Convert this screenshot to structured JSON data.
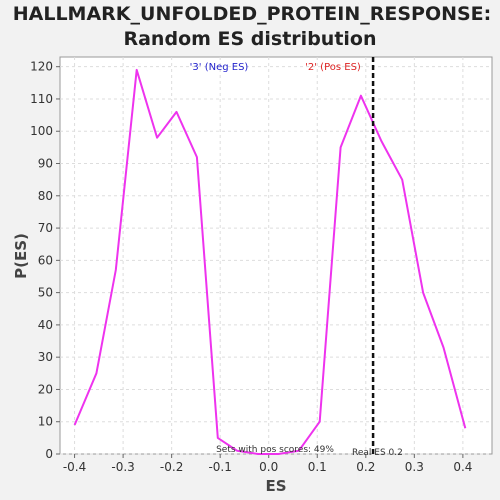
{
  "chart_data": {
    "type": "line",
    "title_line1": "HALLMARK_UNFOLDED_PROTEIN_RESPONSE:",
    "title_line2": "Random ES distribution",
    "xlabel": "ES",
    "ylabel": "P(ES)",
    "xlim": [
      -0.43,
      0.46
    ],
    "ylim": [
      0,
      123
    ],
    "x_ticks": [
      -0.4,
      -0.3,
      -0.2,
      -0.1,
      0.0,
      0.1,
      0.2,
      0.3,
      0.4
    ],
    "x_tick_labels": [
      "-0.4",
      "-0.3",
      "-0.2",
      "-0.1",
      "0.0",
      "0.1",
      "0.2",
      "0.3",
      "0.4"
    ],
    "y_ticks": [
      0,
      10,
      20,
      30,
      40,
      50,
      60,
      70,
      80,
      90,
      100,
      110,
      120
    ],
    "y_tick_labels": [
      "0",
      "10",
      "20",
      "30",
      "40",
      "50",
      "60",
      "70",
      "80",
      "90",
      "100",
      "110",
      "120"
    ],
    "grid": true,
    "series": [
      {
        "color": "#ee33ee",
        "x": [
          -0.4,
          -0.355,
          -0.315,
          -0.272,
          -0.23,
          -0.19,
          -0.148,
          -0.105,
          -0.065,
          -0.022,
          0.02,
          0.062,
          0.105,
          0.148,
          0.19,
          0.232,
          0.275,
          0.318,
          0.36,
          0.405
        ],
        "y": [
          9,
          25,
          57,
          119,
          98,
          106,
          92,
          5,
          1,
          0,
          0,
          1,
          10,
          95,
          111,
          97,
          85,
          50,
          33,
          8
        ]
      }
    ],
    "annotations": {
      "neg_label": "'3' (Neg ES)",
      "neg_color": "#2222cc",
      "pos_label": "'2' (Pos ES)",
      "pos_color": "#dd2222",
      "pos_scores_text": "Sets with pos scores: 49%",
      "real_es_text": "Real ES 0.2",
      "real_es_value": 0.215
    }
  }
}
